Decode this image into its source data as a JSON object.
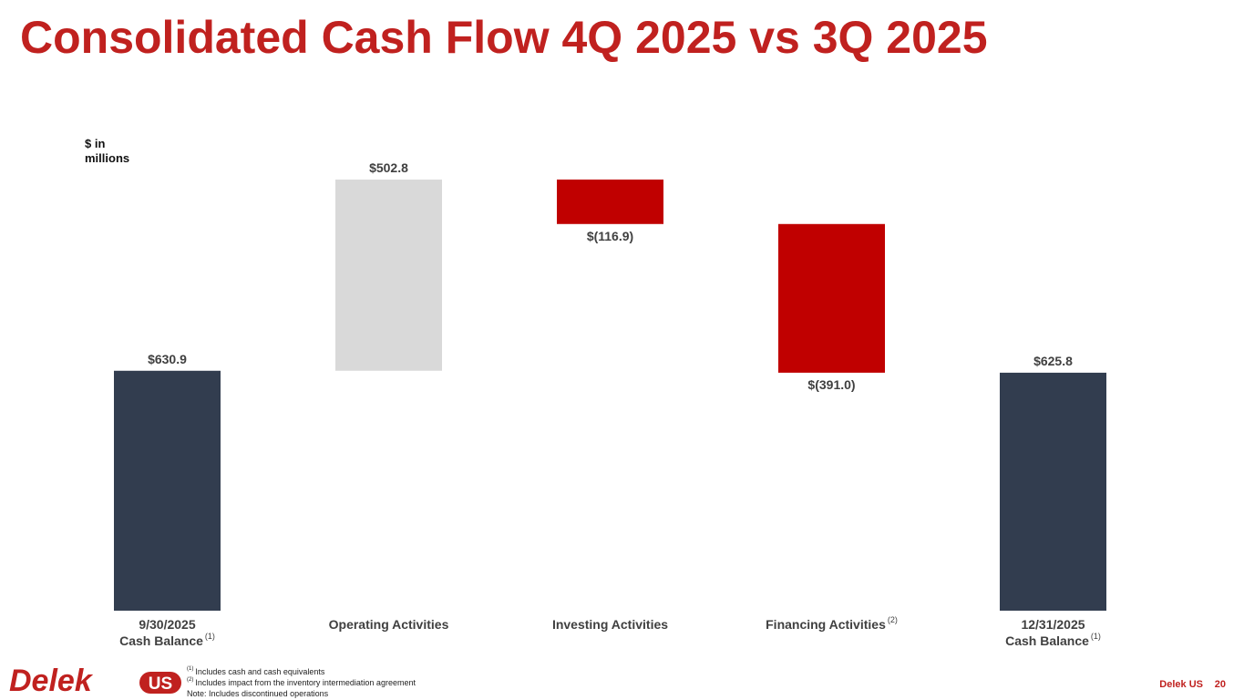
{
  "chart_data": {
    "type": "waterfall",
    "title": "Consolidated Cash Flow 4Q 2025 vs 3Q 2025",
    "unit_label": "$ in millions",
    "categories": [
      [
        "9/30/2025",
        "Cash Balance"
      ],
      [
        "Operating Activities"
      ],
      [
        "Investing Activities"
      ],
      [
        "Financing Activities"
      ],
      [
        "12/31/2025",
        "Cash Balance"
      ]
    ],
    "category_notes": [
      "(1)",
      null,
      null,
      "(2)",
      "(1)"
    ],
    "measures": [
      "absolute",
      "relative",
      "relative",
      "relative",
      "total"
    ],
    "values": [
      630.9,
      502.8,
      -116.9,
      -391.0,
      625.8
    ],
    "value_labels": [
      "$630.9",
      "$502.8",
      "$(116.9)",
      "$(391.0)",
      "$625.8"
    ],
    "colors": [
      "#323d4f",
      "#d9d9d9",
      "#c00000",
      "#c00000",
      "#323d4f"
    ]
  },
  "footnotes": [
    {
      "mark": "(1)",
      "text": "Includes cash and cash equivalents"
    },
    {
      "mark": "(2)",
      "text": "Includes impact from the inventory intermediation agreement"
    },
    {
      "mark": null,
      "text": "Note: Includes discontinued operations"
    }
  ],
  "logo": {
    "text": "Delek",
    "badge": "US"
  },
  "footer": {
    "company": "Delek US",
    "page": "20"
  }
}
